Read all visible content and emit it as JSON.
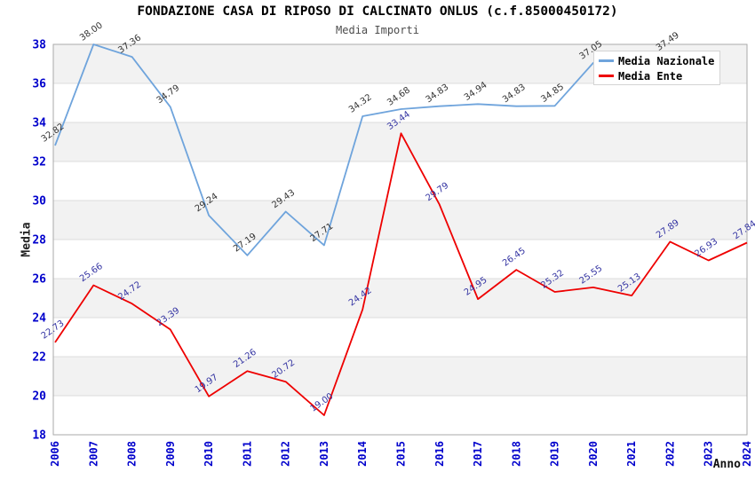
{
  "header": {
    "title": "FONDAZIONE CASA DI RIPOSO DI CALCINATO ONLUS (c.f.85000450172)",
    "subtitle": "Media Importi"
  },
  "axes": {
    "y_title": "Media",
    "x_title": "Anno",
    "y_ticks": [
      18,
      20,
      22,
      24,
      26,
      28,
      30,
      32,
      34,
      36,
      38
    ],
    "x_ticks": [
      "2006",
      "2007",
      "2008",
      "2009",
      "2010",
      "2011",
      "2012",
      "2013",
      "2014",
      "2015",
      "2016",
      "2017",
      "2018",
      "2019",
      "2020",
      "2021",
      "2022",
      "2023",
      "2024"
    ]
  },
  "legend": {
    "items": [
      {
        "label": "Media Nazionale",
        "color": "#6FA4DC"
      },
      {
        "label": "Media Ente",
        "color": "#EE0000"
      }
    ]
  },
  "colors": {
    "axis_text": "#0000CC",
    "band_gray": "#F2F2F2",
    "gridline": "#DCDCDC",
    "plot_border": "#AAAAAA",
    "label_nazionale": "#333333",
    "label_ente": "#3333A2",
    "line_nazionale": "#6FA4DC",
    "line_ente": "#EE0000"
  },
  "chart_data": {
    "type": "line",
    "title": "FONDAZIONE CASA DI RIPOSO DI CALCINATO ONLUS (c.f.85000450172)",
    "subtitle": "Media Importi",
    "xlabel": "Anno",
    "ylabel": "Media",
    "ylim": [
      18,
      38
    ],
    "ytick_step": 2,
    "grid": "horizontal alternating bands",
    "legend_position": "top-right",
    "categories": [
      "2006",
      "2007",
      "2008",
      "2009",
      "2010",
      "2011",
      "2012",
      "2013",
      "2014",
      "2015",
      "2016",
      "2017",
      "2018",
      "2019",
      "2020",
      "2021",
      "2022",
      "2023",
      "2024"
    ],
    "series": [
      {
        "name": "Media Nazionale",
        "color": "#6FA4DC",
        "values": [
          32.82,
          38.0,
          37.36,
          34.79,
          29.24,
          27.19,
          29.43,
          27.71,
          34.32,
          34.68,
          34.83,
          34.94,
          34.83,
          34.85,
          37.05,
          37.2,
          37.49,
          null,
          null
        ],
        "labels": [
          "32.82",
          "38.00",
          "37.36",
          "34.79",
          "29.24",
          "27.19",
          "29.43",
          "27.71",
          "34.32",
          "34.68",
          "34.83",
          "34.94",
          "34.83",
          "34.85",
          "37.05",
          "",
          "37.49",
          "",
          ""
        ],
        "label_color": "#333333",
        "note": "2021 point label hidden behind legend (value estimated ~37.2); series ends at 2022"
      },
      {
        "name": "Media Ente",
        "color": "#EE0000",
        "values": [
          22.73,
          25.66,
          24.72,
          23.39,
          19.97,
          21.26,
          20.72,
          19.0,
          24.42,
          33.44,
          29.79,
          24.95,
          26.45,
          25.32,
          25.55,
          25.13,
          27.89,
          26.93,
          27.84
        ],
        "labels": [
          "22.73",
          "25.66",
          "24.72",
          "23.39",
          "19.97",
          "21.26",
          "20.72",
          "19.00",
          "24.42",
          "33.44",
          "29.79",
          "24.95",
          "26.45",
          "25.32",
          "25.55",
          "25.13",
          "27.89",
          "26.93",
          "27.84"
        ],
        "label_color": "#3333A2"
      }
    ]
  }
}
